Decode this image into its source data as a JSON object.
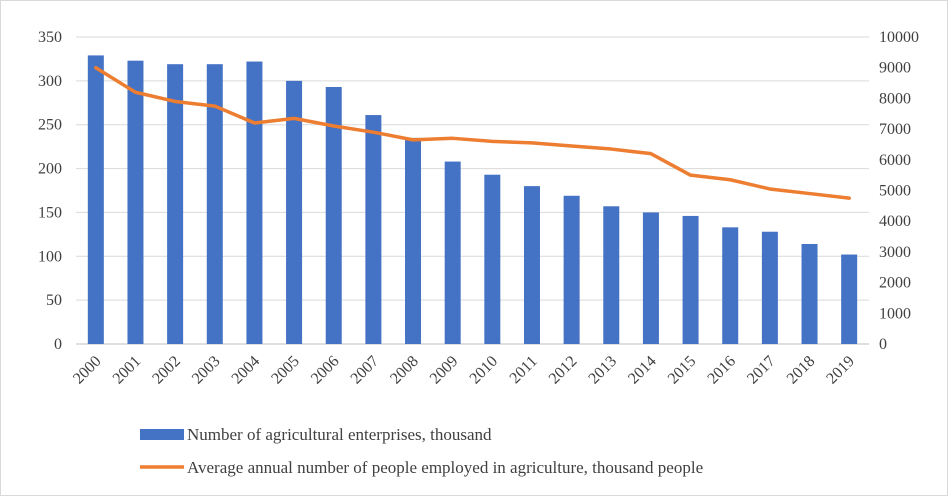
{
  "chart_data": {
    "type": "bar",
    "title": "",
    "xlabel": "",
    "ylabel": "",
    "y2label": "",
    "categories": [
      "2000",
      "2001",
      "2002",
      "2003",
      "2004",
      "2005",
      "2006",
      "2007",
      "2008",
      "2009",
      "2010",
      "2011",
      "2012",
      "2013",
      "2014",
      "2015",
      "2016",
      "2017",
      "2018",
      "2019"
    ],
    "ylim": [
      0,
      350
    ],
    "yticks": [
      "0",
      "50",
      "100",
      "150",
      "200",
      "250",
      "300",
      "350"
    ],
    "y2lim": [
      0,
      10000
    ],
    "y2ticks": [
      "0",
      "1000",
      "2000",
      "3000",
      "4000",
      "5000",
      "6000",
      "7000",
      "8000",
      "9000",
      "10000"
    ],
    "grid": true,
    "legend_position": "bottom",
    "series": [
      {
        "name": "Number of agricultural enterprises, thousand",
        "type": "bar",
        "axis": "left",
        "color": "#4472c4",
        "values": [
          329,
          323,
          319,
          319,
          322,
          300,
          293,
          261,
          235,
          208,
          193,
          180,
          169,
          157,
          150,
          146,
          133,
          128,
          114,
          102
        ]
      },
      {
        "name": "Average annual number of people employed in agriculture, thousand people",
        "type": "line",
        "axis": "right",
        "color": "#ed7d31",
        "values": [
          9000,
          8200,
          7900,
          7750,
          7200,
          7350,
          7100,
          6900,
          6650,
          6700,
          6600,
          6550,
          6450,
          6350,
          6200,
          5500,
          5350,
          5050,
          4900,
          4750
        ]
      }
    ]
  }
}
